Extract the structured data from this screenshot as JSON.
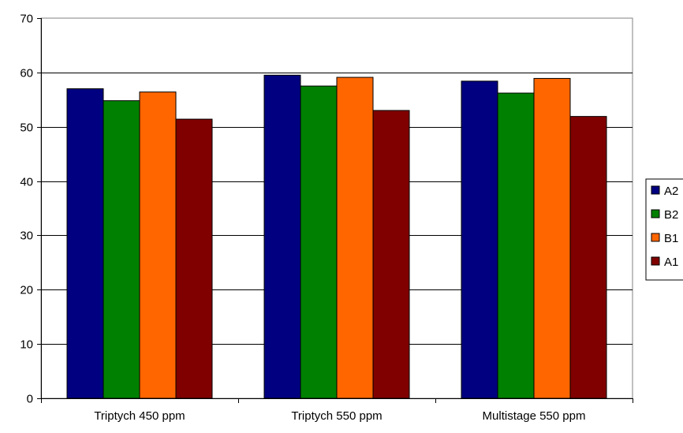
{
  "chart_data": {
    "type": "bar",
    "categories": [
      "Triptych 450 ppm",
      "Triptych 550 ppm",
      "Multistage 550 ppm"
    ],
    "series": [
      {
        "name": "A2",
        "color": "#000080",
        "values": [
          57.0,
          59.5,
          58.4
        ]
      },
      {
        "name": "B2",
        "color": "#008000",
        "values": [
          54.8,
          57.5,
          56.2
        ]
      },
      {
        "name": "B1",
        "color": "#FF6600",
        "values": [
          56.4,
          59.1,
          58.9
        ]
      },
      {
        "name": "A1",
        "color": "#800000",
        "values": [
          51.4,
          53.0,
          51.9
        ]
      }
    ],
    "ylim": [
      0,
      70
    ],
    "yticks": [
      0,
      10,
      20,
      30,
      40,
      50,
      60,
      70
    ],
    "grid": true,
    "legend_position": "right",
    "title": "",
    "xlabel": "",
    "ylabel": ""
  }
}
